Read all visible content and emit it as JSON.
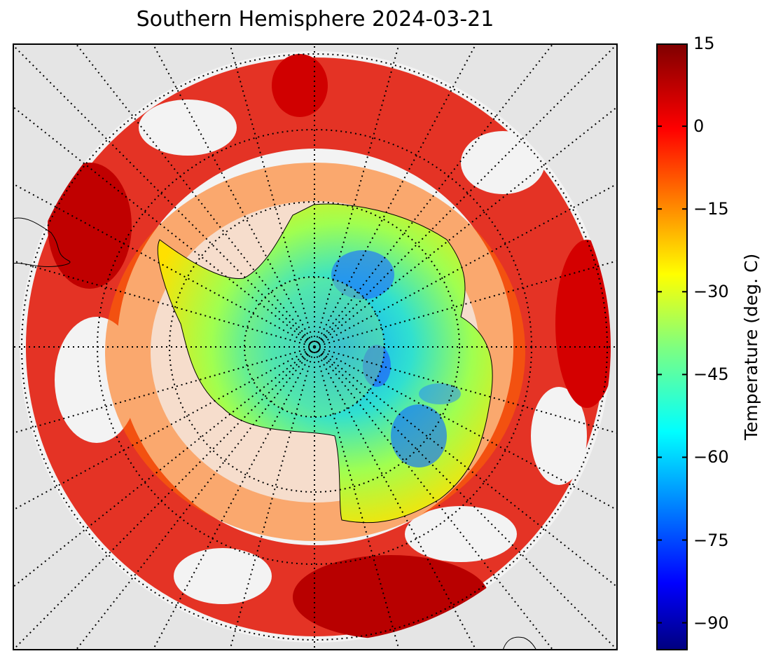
{
  "title": "Southern Hemisphere 2024-03-21",
  "colorbar": {
    "label": "Temperature (deg. C)",
    "min": -95,
    "max": 15,
    "ticks": [
      15,
      0,
      -15,
      -30,
      -45,
      -60,
      -75,
      -90
    ],
    "tick_labels": [
      "15",
      "0",
      "−15",
      "−30",
      "−45",
      "−60",
      "−75",
      "−90"
    ],
    "colormap": "jet"
  },
  "map": {
    "projection": "south-polar-stereographic",
    "background": "#e5e5e5",
    "graticule": "dotted",
    "land_outline": "Antarctica",
    "grid": true
  }
}
